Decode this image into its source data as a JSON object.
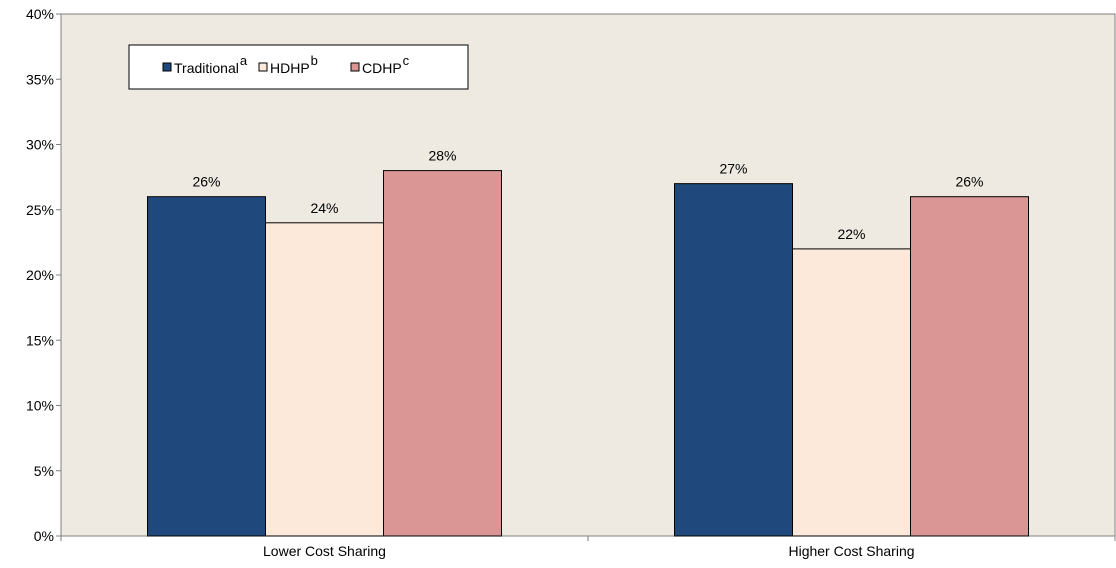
{
  "chart_data": {
    "type": "bar",
    "title": "",
    "xlabel": "",
    "ylabel": "",
    "ylim": [
      0,
      40
    ],
    "y_ticks": [
      0,
      5,
      10,
      15,
      20,
      25,
      30,
      35,
      40
    ],
    "y_tick_labels": [
      "0%",
      "5%",
      "10%",
      "15%",
      "20%",
      "25%",
      "30%",
      "35%",
      "40%"
    ],
    "categories": [
      "Lower Cost Sharing",
      "Higher Cost Sharing"
    ],
    "series": [
      {
        "name": "Traditional",
        "superscript": "a",
        "color": "#1F497D",
        "values": [
          26,
          27
        ],
        "labels": [
          "26%",
          "27%"
        ]
      },
      {
        "name": "HDHP",
        "superscript": "b",
        "color": "#FDE9D9",
        "values": [
          24,
          22
        ],
        "labels": [
          "24%",
          "22%"
        ]
      },
      {
        "name": "CDHP",
        "superscript": "c",
        "color": "#D99694",
        "values": [
          28,
          26
        ],
        "labels": [
          "28%",
          "26%"
        ]
      }
    ],
    "plot_background": "#EEEAE1",
    "grid": false,
    "legend_position": "top-left"
  }
}
